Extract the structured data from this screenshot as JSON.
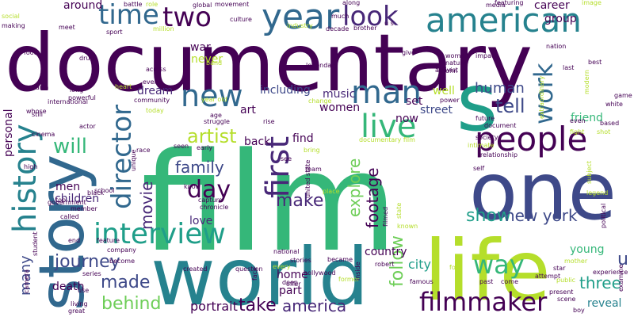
{
  "palette": {
    "dark_purple": "#440154",
    "purple": "#482878",
    "indigo": "#3e4989",
    "blue": "#31688e",
    "teal": "#26828e",
    "cyan_green": "#1f9e89",
    "green": "#35b779",
    "lime": "#6ece58",
    "yellow_green": "#b5de2b",
    "yellow": "#fde725"
  },
  "words": [
    {
      "text": "documentary",
      "color": "#440154"
    },
    {
      "text": "film",
      "color": "#35b779"
    },
    {
      "text": "world",
      "color": "#26828e"
    },
    {
      "text": "one",
      "color": "#3e4989"
    },
    {
      "text": "life",
      "color": "#b5de2b"
    },
    {
      "text": "story",
      "color": "#31688e"
    },
    {
      "text": "s",
      "color": "#1f9e89"
    },
    {
      "text": "people",
      "color": "#440154"
    },
    {
      "text": "year",
      "color": "#31688e"
    },
    {
      "text": "american",
      "color": "#26828e"
    },
    {
      "text": "man",
      "color": "#31688e"
    },
    {
      "text": "time",
      "color": "#31688e"
    },
    {
      "text": "two",
      "color": "#440154"
    },
    {
      "text": "look",
      "color": "#482878"
    },
    {
      "text": "new",
      "color": "#31688e"
    },
    {
      "text": "history",
      "color": "#26828e"
    },
    {
      "text": "director",
      "color": "#31688e"
    },
    {
      "text": "first",
      "color": "#482878"
    },
    {
      "text": "live",
      "color": "#35b779"
    },
    {
      "text": "interview",
      "color": "#1f9e89"
    },
    {
      "text": "filmmaker",
      "color": "#440154"
    },
    {
      "text": "work",
      "color": "#31688e"
    },
    {
      "text": "day",
      "color": "#440154"
    },
    {
      "text": "will",
      "color": "#35b779"
    },
    {
      "text": "artist",
      "color": "#b5de2b"
    },
    {
      "text": "family",
      "color": "#3e4989"
    },
    {
      "text": "make",
      "color": "#482878"
    },
    {
      "text": "movie",
      "color": "#482878"
    },
    {
      "text": "journey",
      "color": "#3e4989"
    },
    {
      "text": "made",
      "color": "#3e4989"
    },
    {
      "text": "behind",
      "color": "#6ece58"
    },
    {
      "text": "portrait",
      "color": "#440154"
    },
    {
      "text": "take",
      "color": "#440154"
    },
    {
      "text": "america",
      "color": "#482878"
    },
    {
      "text": "show",
      "color": "#1f9e89"
    },
    {
      "text": "new york",
      "color": "#3e4989"
    },
    {
      "text": "way",
      "color": "#35b779"
    },
    {
      "text": "follow",
      "color": "#6ece58"
    },
    {
      "text": "explore",
      "color": "#6ece58"
    },
    {
      "text": "footage",
      "color": "#440154"
    },
    {
      "text": "tell",
      "color": "#3e4989"
    },
    {
      "text": "human",
      "color": "#3e4989"
    },
    {
      "text": "many",
      "color": "#3e4989"
    },
    {
      "text": "children",
      "color": "#482878"
    },
    {
      "text": "country",
      "color": "#440154"
    },
    {
      "text": "young",
      "color": "#35b779"
    },
    {
      "text": "friend",
      "color": "#35b779"
    },
    {
      "text": "three",
      "color": "#1f9e89"
    },
    {
      "text": "u",
      "color": "#3e4989"
    },
    {
      "text": "city",
      "color": "#1f9e89"
    },
    {
      "text": "death",
      "color": "#440154"
    },
    {
      "text": "personal",
      "color": "#440154"
    },
    {
      "text": "love",
      "color": "#482878"
    },
    {
      "text": "including",
      "color": "#3e4989"
    },
    {
      "text": "music",
      "color": "#482878"
    },
    {
      "text": "well",
      "color": "#b5de2b"
    },
    {
      "text": "street",
      "color": "#3e4989"
    },
    {
      "text": "women",
      "color": "#440154"
    },
    {
      "text": "art",
      "color": "#440154"
    },
    {
      "text": "dream",
      "color": "#482878"
    },
    {
      "text": "find",
      "color": "#440154"
    },
    {
      "text": "back",
      "color": "#440154"
    },
    {
      "text": "home",
      "color": "#440154"
    },
    {
      "text": "part",
      "color": "#440154"
    },
    {
      "text": "reveal",
      "color": "#26828e"
    },
    {
      "text": "now",
      "color": "#440154"
    },
    {
      "text": "set",
      "color": "#440154"
    },
    {
      "text": "men",
      "color": "#440154"
    },
    {
      "text": "around",
      "color": "#440154"
    },
    {
      "text": "war",
      "color": "#440154"
    },
    {
      "text": "never",
      "color": "#b5de2b"
    },
    {
      "text": "career",
      "color": "#440154"
    },
    {
      "text": "group",
      "color": "#440154"
    },
    {
      "text": "along",
      "color": "#440154"
    },
    {
      "text": "much",
      "color": "#440154"
    },
    {
      "text": "battle",
      "color": "#440154"
    },
    {
      "text": "role",
      "color": "#b5de2b"
    },
    {
      "text": "global",
      "color": "#440154"
    },
    {
      "text": "movement",
      "color": "#440154"
    },
    {
      "text": "media",
      "color": "#440154"
    },
    {
      "text": "featuring",
      "color": "#440154"
    },
    {
      "text": "image",
      "color": "#b5de2b"
    },
    {
      "text": "social",
      "color": "#b5de2b"
    },
    {
      "text": "making",
      "color": "#440154"
    },
    {
      "text": "meet",
      "color": "#440154"
    },
    {
      "text": "sport",
      "color": "#440154"
    },
    {
      "text": "million",
      "color": "#b5de2b"
    },
    {
      "text": "culture",
      "color": "#440154"
    },
    {
      "text": "industry",
      "color": "#b5de2b"
    },
    {
      "text": "decade",
      "color": "#440154"
    },
    {
      "text": "brother",
      "color": "#440154"
    },
    {
      "text": "u s",
      "color": "#440154"
    },
    {
      "text": "woman",
      "color": "#440154"
    },
    {
      "text": "activist",
      "color": "#440154"
    },
    {
      "text": "nature",
      "color": "#440154"
    },
    {
      "text": "give",
      "color": "#440154"
    },
    {
      "text": "impact",
      "color": "#440154"
    },
    {
      "text": "john",
      "color": "#440154"
    },
    {
      "text": "legendary",
      "color": "#440154"
    },
    {
      "text": "nation",
      "color": "#440154"
    },
    {
      "text": "last",
      "color": "#440154"
    },
    {
      "text": "best",
      "color": "#440154"
    },
    {
      "text": "food",
      "color": "#440154"
    },
    {
      "text": "drug",
      "color": "#440154"
    },
    {
      "text": "across",
      "color": "#440154"
    },
    {
      "text": "event",
      "color": "#440154"
    },
    {
      "text": "heart",
      "color": "#b5de2b"
    },
    {
      "text": "band",
      "color": "#b5de2b"
    },
    {
      "text": "earth",
      "color": "#440154"
    },
    {
      "text": "long",
      "color": "#440154"
    },
    {
      "text": "powerful",
      "color": "#440154"
    },
    {
      "text": "international",
      "color": "#440154"
    },
    {
      "text": "whose",
      "color": "#440154"
    },
    {
      "text": "still",
      "color": "#440154"
    },
    {
      "text": "actor",
      "color": "#440154"
    },
    {
      "text": "cinema",
      "color": "#440154"
    },
    {
      "text": "high",
      "color": "#440154"
    },
    {
      "text": "community",
      "color": "#440154"
    },
    {
      "text": "today",
      "color": "#b5de2b"
    },
    {
      "text": "year old",
      "color": "#b5de2b"
    },
    {
      "text": "age",
      "color": "#440154"
    },
    {
      "text": "struggle",
      "color": "#440154"
    },
    {
      "text": "rise",
      "color": "#440154"
    },
    {
      "text": "change",
      "color": "#b5de2b"
    },
    {
      "text": "power",
      "color": "#440154"
    },
    {
      "text": "future",
      "color": "#440154"
    },
    {
      "text": "document",
      "color": "#440154"
    },
    {
      "text": "documentary film",
      "color": "#b5de2b"
    },
    {
      "text": "intimate",
      "color": "#b5de2b"
    },
    {
      "text": "relationship",
      "color": "#440154"
    },
    {
      "text": "society",
      "color": "#440154"
    },
    {
      "text": "self",
      "color": "#440154"
    },
    {
      "text": "fight",
      "color": "#b5de2b"
    },
    {
      "text": "shot",
      "color": "#b5de2b"
    },
    {
      "text": "even",
      "color": "#440154"
    },
    {
      "text": "based",
      "color": "#440154"
    },
    {
      "text": "game",
      "color": "#440154"
    },
    {
      "text": "white",
      "color": "#440154"
    },
    {
      "text": "extraordinary",
      "color": "#b5de2b"
    },
    {
      "text": "modern",
      "color": "#b5de2b"
    },
    {
      "text": "political",
      "color": "#440154"
    },
    {
      "text": "legend",
      "color": "#b5de2b"
    },
    {
      "text": "subject",
      "color": "#b5de2b"
    },
    {
      "text": "race",
      "color": "#440154"
    },
    {
      "text": "seen",
      "color": "#440154"
    },
    {
      "text": "early",
      "color": "#440154"
    },
    {
      "text": "bring",
      "color": "#b5de2b"
    },
    {
      "text": "see",
      "color": "#440154"
    },
    {
      "text": "team",
      "color": "#440154"
    },
    {
      "text": "place",
      "color": "#b5de2b"
    },
    {
      "text": "unique",
      "color": "#440154"
    },
    {
      "text": "black",
      "color": "#440154"
    },
    {
      "text": "school",
      "color": "#440154"
    },
    {
      "text": "top",
      "color": "#440154"
    },
    {
      "text": "member",
      "color": "#440154"
    },
    {
      "text": "called",
      "color": "#440154"
    },
    {
      "text": "government",
      "color": "#440154"
    },
    {
      "text": "end",
      "color": "#440154"
    },
    {
      "text": "feature",
      "color": "#440154"
    },
    {
      "text": "company",
      "color": "#440154"
    },
    {
      "text": "series",
      "color": "#440154"
    },
    {
      "text": "use",
      "color": "#440154"
    },
    {
      "text": "living",
      "color": "#440154"
    },
    {
      "text": "great",
      "color": "#440154"
    },
    {
      "text": "camera",
      "color": "#440154"
    },
    {
      "text": "student",
      "color": "#440154"
    },
    {
      "text": "know",
      "color": "#440154"
    },
    {
      "text": "capture",
      "color": "#440154"
    },
    {
      "text": "chronicle",
      "color": "#440154"
    },
    {
      "text": "created",
      "color": "#440154"
    },
    {
      "text": "question",
      "color": "#440154"
    },
    {
      "text": "national",
      "color": "#440154"
    },
    {
      "text": "united state",
      "color": "#440154"
    },
    {
      "text": "filmed",
      "color": "#440154"
    },
    {
      "text": "state",
      "color": "#b5de2b"
    },
    {
      "text": "known",
      "color": "#b5de2b"
    },
    {
      "text": "robert",
      "color": "#440154"
    },
    {
      "text": "became",
      "color": "#440154"
    },
    {
      "text": "stories",
      "color": "#440154"
    },
    {
      "text": "every",
      "color": "#b5de2b"
    },
    {
      "text": "hollywood",
      "color": "#440154"
    },
    {
      "text": "offer",
      "color": "#440154"
    },
    {
      "text": "face",
      "color": "#440154"
    },
    {
      "text": "deep",
      "color": "#440154"
    },
    {
      "text": "former",
      "color": "#b5de2b"
    },
    {
      "text": "inside",
      "color": "#440154"
    },
    {
      "text": "famous",
      "color": "#440154"
    },
    {
      "text": "four",
      "color": "#b5de2b"
    },
    {
      "text": "past",
      "color": "#440154"
    },
    {
      "text": "come",
      "color": "#440154"
    },
    {
      "text": "attempt",
      "color": "#440154"
    },
    {
      "text": "present",
      "color": "#440154"
    },
    {
      "text": "scene",
      "color": "#440154"
    },
    {
      "text": "boy",
      "color": "#440154"
    },
    {
      "text": "star",
      "color": "#440154"
    },
    {
      "text": "public",
      "color": "#b5de2b"
    },
    {
      "text": "experience",
      "color": "#440154"
    },
    {
      "text": "mother",
      "color": "#b5de2b"
    },
    {
      "text": "examine",
      "color": "#440154"
    },
    {
      "text": "become",
      "color": "#440154"
    }
  ]
}
